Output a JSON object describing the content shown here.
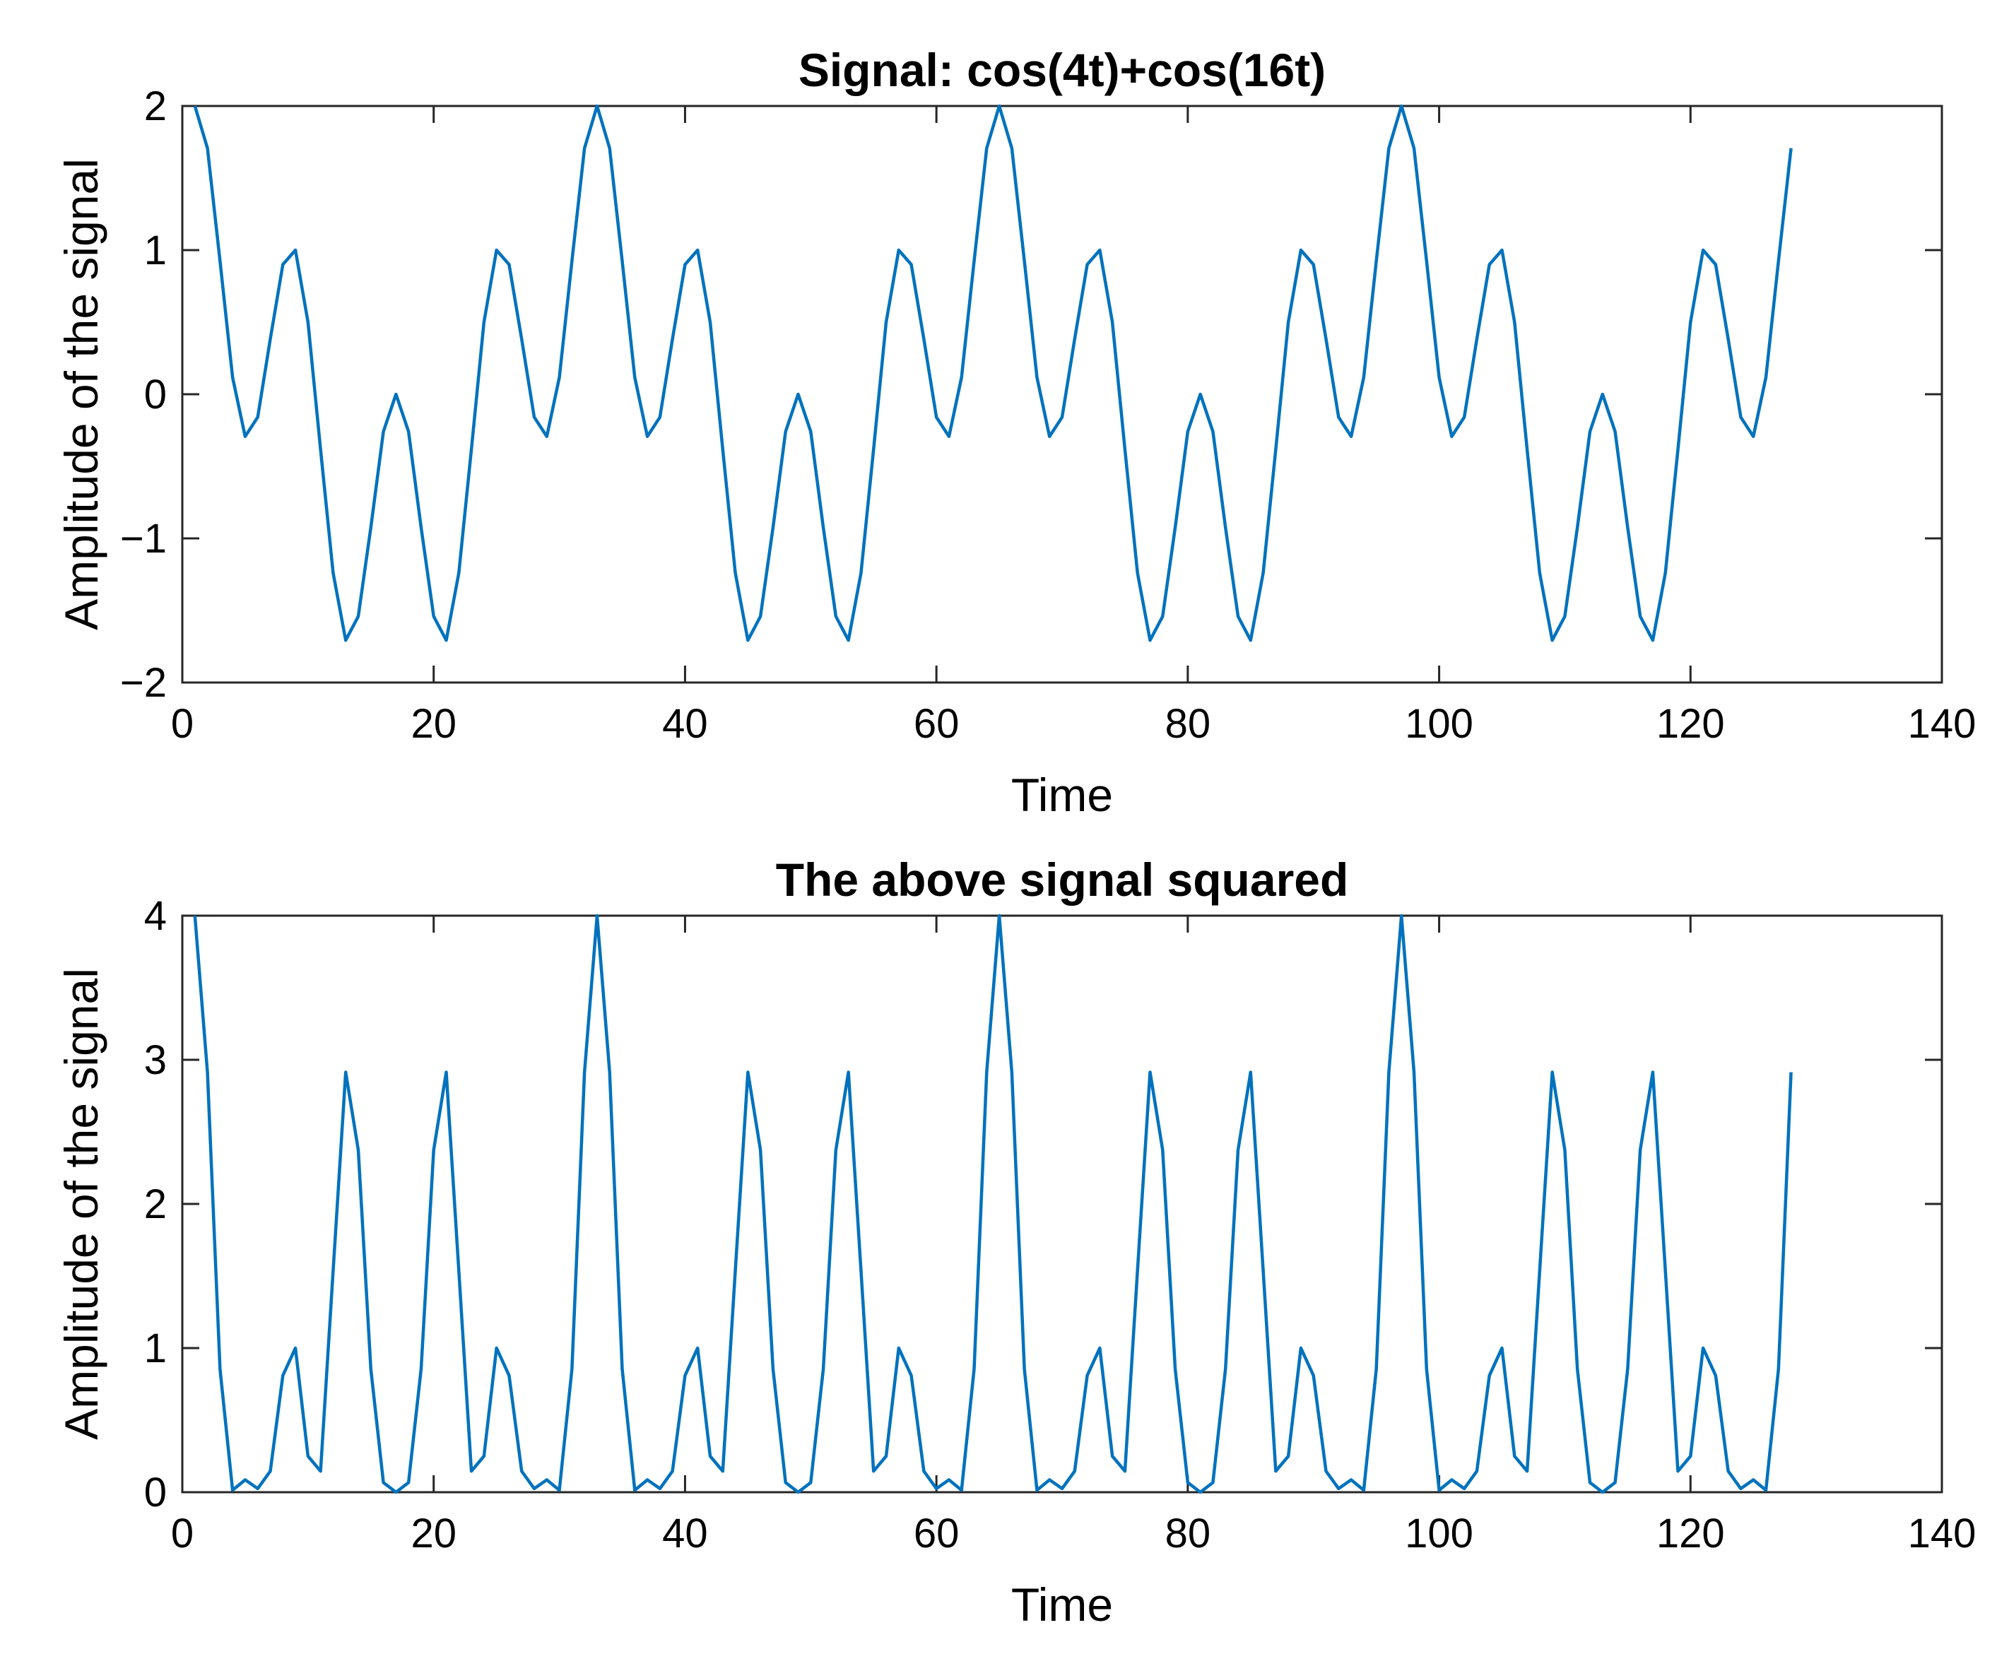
{
  "colors": {
    "line": "#0072BD",
    "axes": "#262626",
    "background": "#ffffff"
  },
  "chart_data": [
    {
      "type": "line",
      "title": "Signal: cos(4t)+cos(16t)",
      "xlabel": "Time",
      "ylabel": "Amplitude of the signal",
      "xlim": [
        0,
        140
      ],
      "ylim": [
        -2,
        2
      ],
      "xticks": [
        0,
        20,
        40,
        60,
        80,
        100,
        120,
        140
      ],
      "xtick_labels": [
        "0",
        "20",
        "40",
        "60",
        "80",
        "100",
        "120",
        "140"
      ],
      "yticks": [
        -2,
        -1,
        0,
        1,
        2
      ],
      "ytick_labels": [
        "−2",
        "−1",
        "0",
        "1",
        "2"
      ],
      "grid": false,
      "series": [
        {
          "x": [
            1,
            2,
            3,
            4,
            5,
            6,
            7,
            8,
            9,
            10,
            11,
            12,
            13,
            14,
            15,
            16,
            17,
            18,
            19,
            20,
            21,
            22,
            23,
            24,
            25,
            26,
            27,
            28,
            29,
            30,
            31,
            32,
            33,
            34,
            35,
            36,
            37,
            38,
            39,
            40,
            41,
            42,
            43,
            44,
            45,
            46,
            47,
            48,
            49,
            50,
            51,
            52,
            53,
            54,
            55,
            56,
            57,
            58,
            59,
            60,
            61,
            62,
            63,
            64,
            65,
            66,
            67,
            68,
            69,
            70,
            71,
            72,
            73,
            74,
            75,
            76,
            77,
            78,
            79,
            80,
            81,
            82,
            83,
            84,
            85,
            86,
            87,
            88,
            89,
            90,
            91,
            92,
            93,
            94,
            95,
            96,
            97,
            98,
            99,
            100,
            101,
            102,
            103,
            104,
            105,
            106,
            107,
            108,
            109,
            110,
            111,
            112,
            113,
            114,
            115,
            116,
            117,
            118,
            119,
            120,
            121,
            122,
            123,
            124,
            125,
            126,
            127,
            128
          ],
          "values": [
            2.0,
            1.707,
            0.924,
            0.117,
            -0.293,
            -0.159,
            0.383,
            0.9,
            1.0,
            0.5,
            -0.383,
            -1.24,
            -1.707,
            -1.541,
            -0.924,
            -0.259,
            0.0,
            -0.259,
            -0.924,
            -1.541,
            -1.707,
            -1.24,
            -0.383,
            0.5,
            1.0,
            0.9,
            0.383,
            -0.159,
            -0.293,
            0.117,
            0.924,
            1.707,
            2.0,
            1.707,
            0.924,
            0.117,
            -0.293,
            -0.159,
            0.383,
            0.9,
            1.0,
            0.5,
            -0.383,
            -1.24,
            -1.707,
            -1.541,
            -0.924,
            -0.259,
            0.0,
            -0.259,
            -0.924,
            -1.541,
            -1.707,
            -1.24,
            -0.383,
            0.5,
            1.0,
            0.9,
            0.383,
            -0.159,
            -0.293,
            0.117,
            0.924,
            1.707,
            2.0,
            1.707,
            0.924,
            0.117,
            -0.293,
            -0.159,
            0.383,
            0.9,
            1.0,
            0.5,
            -0.383,
            -1.24,
            -1.707,
            -1.541,
            -0.924,
            -0.259,
            0.0,
            -0.259,
            -0.924,
            -1.541,
            -1.707,
            -1.24,
            -0.383,
            0.5,
            1.0,
            0.9,
            0.383,
            -0.159,
            -0.293,
            0.117,
            0.924,
            1.707,
            2.0,
            1.707,
            0.924,
            0.117,
            -0.293,
            -0.159,
            0.383,
            0.9,
            1.0,
            0.5,
            -0.383,
            -1.24,
            -1.707,
            -1.541,
            -0.924,
            -0.259,
            0.0,
            -0.259,
            -0.924,
            -1.541,
            -1.707,
            -1.24,
            -0.383,
            0.5,
            1.0,
            0.9,
            0.383,
            -0.159,
            -0.293,
            0.117,
            0.924,
            1.707
          ]
        }
      ]
    },
    {
      "type": "line",
      "title": "The above signal squared",
      "xlabel": "Time",
      "ylabel": "Amplitude of the signal",
      "xlim": [
        0,
        140
      ],
      "ylim": [
        0,
        4
      ],
      "xticks": [
        0,
        20,
        40,
        60,
        80,
        100,
        120,
        140
      ],
      "xtick_labels": [
        "0",
        "20",
        "40",
        "60",
        "80",
        "100",
        "120",
        "140"
      ],
      "yticks": [
        0,
        1,
        2,
        3,
        4
      ],
      "ytick_labels": [
        "0",
        "1",
        "2",
        "3",
        "4"
      ],
      "grid": false,
      "series": [
        {
          "x": [
            1,
            2,
            3,
            4,
            5,
            6,
            7,
            8,
            9,
            10,
            11,
            12,
            13,
            14,
            15,
            16,
            17,
            18,
            19,
            20,
            21,
            22,
            23,
            24,
            25,
            26,
            27,
            28,
            29,
            30,
            31,
            32,
            33,
            34,
            35,
            36,
            37,
            38,
            39,
            40,
            41,
            42,
            43,
            44,
            45,
            46,
            47,
            48,
            49,
            50,
            51,
            52,
            53,
            54,
            55,
            56,
            57,
            58,
            59,
            60,
            61,
            62,
            63,
            64,
            65,
            66,
            67,
            68,
            69,
            70,
            71,
            72,
            73,
            74,
            75,
            76,
            77,
            78,
            79,
            80,
            81,
            82,
            83,
            84,
            85,
            86,
            87,
            88,
            89,
            90,
            91,
            92,
            93,
            94,
            95,
            96,
            97,
            98,
            99,
            100,
            101,
            102,
            103,
            104,
            105,
            106,
            107,
            108,
            109,
            110,
            111,
            112,
            113,
            114,
            115,
            116,
            117,
            118,
            119,
            120,
            121,
            122,
            123,
            124,
            125,
            126,
            127,
            128
          ],
          "values": [
            4.0,
            2.914,
            0.854,
            0.014,
            0.086,
            0.025,
            0.146,
            0.81,
            1.0,
            0.25,
            0.146,
            1.537,
            2.914,
            2.374,
            0.854,
            0.067,
            0.0,
            0.067,
            0.854,
            2.374,
            2.914,
            1.537,
            0.146,
            0.25,
            1.0,
            0.81,
            0.146,
            0.025,
            0.086,
            0.014,
            0.854,
            2.914,
            4.0,
            2.914,
            0.854,
            0.014,
            0.086,
            0.025,
            0.146,
            0.81,
            1.0,
            0.25,
            0.146,
            1.537,
            2.914,
            2.374,
            0.854,
            0.067,
            0.0,
            0.067,
            0.854,
            2.374,
            2.914,
            1.537,
            0.146,
            0.25,
            1.0,
            0.81,
            0.146,
            0.025,
            0.086,
            0.014,
            0.854,
            2.914,
            4.0,
            2.914,
            0.854,
            0.014,
            0.086,
            0.025,
            0.146,
            0.81,
            1.0,
            0.25,
            0.146,
            1.537,
            2.914,
            2.374,
            0.854,
            0.067,
            0.0,
            0.067,
            0.854,
            2.374,
            2.914,
            1.537,
            0.146,
            0.25,
            1.0,
            0.81,
            0.146,
            0.025,
            0.086,
            0.014,
            0.854,
            2.914,
            4.0,
            2.914,
            0.854,
            0.014,
            0.086,
            0.025,
            0.146,
            0.81,
            1.0,
            0.25,
            0.146,
            1.537,
            2.914,
            2.374,
            0.854,
            0.067,
            0.0,
            0.067,
            0.854,
            2.374,
            2.914,
            1.537,
            0.146,
            0.25,
            1.0,
            0.81,
            0.146,
            0.025,
            0.086,
            0.014,
            0.854,
            2.914
          ]
        }
      ]
    }
  ]
}
